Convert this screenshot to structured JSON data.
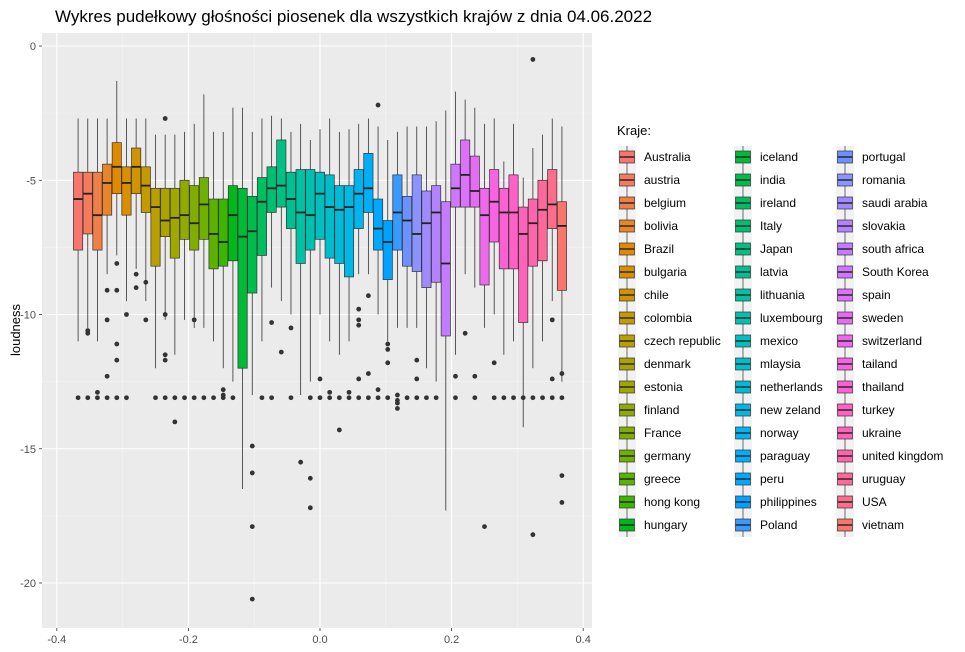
{
  "chart_data": {
    "type": "boxplot",
    "title": "Wykres pudełkowy głośności piosenek dla wszystkich krajów z dnia 04.06.2022",
    "xlabel": "",
    "ylabel": "loudness",
    "xlim": [
      -0.4,
      0.4
    ],
    "ylim": [
      -21.5,
      0.3
    ],
    "x_ticks": [
      "-0.4",
      "-0.2",
      "0.0",
      "0.2",
      "0.4"
    ],
    "x_tick_values": [
      -0.4,
      -0.2,
      0.0,
      0.2,
      0.4
    ],
    "y_ticks": [
      "0",
      "-5",
      "-10",
      "-15",
      "-20"
    ],
    "y_tick_values": [
      0,
      -5,
      -10,
      -15,
      -20
    ],
    "grid": true,
    "legend_title": "Kraje:",
    "legend_position": "right",
    "series": [
      {
        "name": "Australia",
        "color": "#F8766D",
        "whisker_low": -11.0,
        "q1": -7.6,
        "median": -5.7,
        "q3": -4.7,
        "whisker_high": -2.7,
        "outliers": [
          -13.1
        ]
      },
      {
        "name": "austria",
        "color": "#F47B5B",
        "whisker_low": -10.5,
        "q1": -7.0,
        "median": -5.5,
        "q3": -4.7,
        "whisker_high": -2.7,
        "outliers": [
          -10.6,
          -10.7,
          -13.1
        ]
      },
      {
        "name": "belgium",
        "color": "#EF7F46",
        "whisker_low": -11.0,
        "q1": -7.6,
        "median": -6.3,
        "q3": -4.7,
        "whisker_high": -2.7,
        "outliers": [
          -12.9,
          -13.1
        ]
      },
      {
        "name": "bolivia",
        "color": "#E88526",
        "whisker_low": -8.5,
        "q1": -6.3,
        "median": -5.1,
        "q3": -4.4,
        "whisker_high": -2.7,
        "outliers": [
          -9.1,
          -10.2,
          -12.3,
          -13.1
        ]
      },
      {
        "name": "Brazil",
        "color": "#E18A00",
        "whisker_low": -7.8,
        "q1": -5.5,
        "median": -4.5,
        "q3": -3.6,
        "whisker_high": -1.3,
        "outliers": [
          -8.1,
          -9.1,
          -11.1,
          -11.7,
          -13.1
        ]
      },
      {
        "name": "bulgaria",
        "color": "#D89000",
        "whisker_low": -9.5,
        "q1": -6.3,
        "median": -5.1,
        "q3": -4.5,
        "whisker_high": -2.7,
        "outliers": [
          -10.0,
          -13.1
        ]
      },
      {
        "name": "chile",
        "color": "#CF9400",
        "whisker_low": -8.3,
        "q1": -5.5,
        "median": -4.5,
        "q3": -3.8,
        "whisker_high": -2.7,
        "outliers": [
          -8.5,
          -9.0
        ]
      },
      {
        "name": "colombia",
        "color": "#C49A00",
        "whisker_low": -9.5,
        "q1": -6.2,
        "median": -5.2,
        "q3": -4.5,
        "whisker_high": -2.7,
        "outliers": [
          -8.8,
          -10.2
        ]
      },
      {
        "name": "czech republic",
        "color": "#B9A000",
        "whisker_low": -12.0,
        "q1": -8.2,
        "median": -6.0,
        "q3": -5.3,
        "whisker_high": -3.3,
        "outliers": [
          -13.1
        ]
      },
      {
        "name": "denmark",
        "color": "#ABA300",
        "whisker_low": -10.2,
        "q1": -7.1,
        "median": -6.5,
        "q3": -5.3,
        "whisker_high": -3.3,
        "outliers": [
          -2.7,
          -10.0,
          -11.5,
          -11.7,
          -13.1
        ]
      },
      {
        "name": "estonia",
        "color": "#9FA700",
        "whisker_low": -11.5,
        "q1": -7.9,
        "median": -6.4,
        "q3": -5.3,
        "whisker_high": -3.3,
        "outliers": [
          -13.1,
          -14.0
        ]
      },
      {
        "name": "finland",
        "color": "#91AA00",
        "whisker_low": -10.2,
        "q1": -7.2,
        "median": -6.3,
        "q3": -5.0,
        "whisker_high": -3.2,
        "outliers": [
          -13.1
        ]
      },
      {
        "name": "France",
        "color": "#81AD00",
        "whisker_low": -10.5,
        "q1": -7.6,
        "median": -6.6,
        "q3": -5.2,
        "whisker_high": -2.9,
        "outliers": [
          -10.2,
          -13.1
        ]
      },
      {
        "name": "germany",
        "color": "#70B000",
        "whisker_low": -10.5,
        "q1": -7.2,
        "median": -5.9,
        "q3": -4.9,
        "whisker_high": -1.8,
        "outliers": [
          -13.1
        ]
      },
      {
        "name": "greece",
        "color": "#5BB300",
        "whisker_low": -11.0,
        "q1": -8.3,
        "median": -7.0,
        "q3": -5.7,
        "whisker_high": -3.2,
        "outliers": [
          -13.1
        ]
      },
      {
        "name": "hong kong",
        "color": "#3CB600",
        "whisker_low": -12.0,
        "q1": -8.2,
        "median": -7.3,
        "q3": -5.7,
        "whisker_high": -3.2,
        "outliers": [
          -12.8,
          -13.0,
          -13.1
        ]
      },
      {
        "name": "hungary",
        "color": "#00B81C",
        "whisker_low": -12.5,
        "q1": -8.0,
        "median": -6.3,
        "q3": -5.2,
        "whisker_high": -2.3,
        "outliers": [
          -13.1
        ]
      },
      {
        "name": "iceland",
        "color": "#00BA38",
        "whisker_low": -16.5,
        "q1": -12.0,
        "median": -7.1,
        "q3": -5.3,
        "whisker_high": -2.3,
        "outliers": []
      },
      {
        "name": "india",
        "color": "#00BC4D",
        "whisker_low": -13.0,
        "q1": -9.2,
        "median": -6.9,
        "q3": -5.6,
        "whisker_high": -3.2,
        "outliers": [
          -14.9,
          -15.9,
          -17.9,
          -20.6
        ]
      },
      {
        "name": "ireland",
        "color": "#00BD60",
        "whisker_low": -11.0,
        "q1": -7.8,
        "median": -5.8,
        "q3": -4.9,
        "whisker_high": -2.7,
        "outliers": [
          -13.1
        ]
      },
      {
        "name": "Italy",
        "color": "#00BF72",
        "whisker_low": -9.0,
        "q1": -6.2,
        "median": -5.3,
        "q3": -4.5,
        "whisker_high": -2.6,
        "outliers": [
          -10.3,
          -13.1
        ]
      },
      {
        "name": "Japan",
        "color": "#00C083",
        "whisker_low": -9.5,
        "q1": -6.0,
        "median": -5.2,
        "q3": -3.5,
        "whisker_high": -2.7,
        "outliers": [
          -11.4
        ]
      },
      {
        "name": "latvia",
        "color": "#00C093",
        "whisker_low": -10.0,
        "q1": -6.8,
        "median": -5.7,
        "q3": -4.7,
        "whisker_high": -3.2,
        "outliers": [
          -10.5,
          -13.1
        ]
      },
      {
        "name": "lithuania",
        "color": "#00C1A2",
        "whisker_low": -13.0,
        "q1": -8.1,
        "median": -6.2,
        "q3": -4.6,
        "whisker_high": -2.9,
        "outliers": [
          -15.5
        ]
      },
      {
        "name": "luxembourg",
        "color": "#00C0B0",
        "whisker_low": -12.5,
        "q1": -7.6,
        "median": -6.3,
        "q3": -4.6,
        "whisker_high": -3.5,
        "outliers": [
          -13.1,
          -16.1,
          -17.2
        ]
      },
      {
        "name": "mexico",
        "color": "#00BFBE",
        "whisker_low": -10.0,
        "q1": -7.2,
        "median": -5.5,
        "q3": -4.7,
        "whisker_high": -3.1,
        "outliers": [
          -12.4,
          -13.1
        ]
      },
      {
        "name": "mlaysia",
        "color": "#00BDCB",
        "whisker_low": -11.0,
        "q1": -7.9,
        "median": -6.0,
        "q3": -4.8,
        "whisker_high": -2.7,
        "outliers": [
          -12.9,
          -13.1
        ]
      },
      {
        "name": "netherlands",
        "color": "#00BBD7",
        "whisker_low": -11.5,
        "q1": -8.1,
        "median": -6.1,
        "q3": -5.2,
        "whisker_high": -3.2,
        "outliers": [
          -13.1,
          -14.3
        ]
      },
      {
        "name": "new zeland",
        "color": "#00B8E3",
        "whisker_low": -11.0,
        "q1": -8.6,
        "median": -6.0,
        "q3": -5.2,
        "whisker_high": -3.1,
        "outliers": [
          -12.9,
          -13.1
        ]
      },
      {
        "name": "norway",
        "color": "#00B4EF",
        "whisker_low": -8.5,
        "q1": -6.8,
        "median": -5.5,
        "q3": -4.6,
        "whisker_high": -2.9,
        "outliers": [
          -9.8,
          -10.2,
          -10.4,
          -12.4,
          -13.1
        ]
      },
      {
        "name": "paraguay",
        "color": "#00AFF8",
        "whisker_low": -8.5,
        "q1": -6.2,
        "median": -5.3,
        "q3": -4.0,
        "whisker_high": -2.7,
        "outliers": [
          -9.3,
          -12.2,
          -13.1
        ]
      },
      {
        "name": "peru",
        "color": "#00A9FF",
        "whisker_low": -10.0,
        "q1": -7.6,
        "median": -6.8,
        "q3": -5.7,
        "whisker_high": -3.0,
        "outliers": [
          -2.2,
          -12.8,
          -13.1
        ]
      },
      {
        "name": "philippines",
        "color": "#00A2FF",
        "whisker_low": -11.0,
        "q1": -8.7,
        "median": -7.3,
        "q3": -6.5,
        "whisker_high": -3.5,
        "outliers": [
          -11.1,
          -11.3,
          -11.8,
          -13.1
        ]
      },
      {
        "name": "Poland",
        "color": "#389AFF",
        "whisker_low": -10.5,
        "q1": -7.6,
        "median": -6.2,
        "q3": -4.8,
        "whisker_high": -3.2,
        "outliers": [
          -13.0,
          -13.2,
          -13.3,
          -13.5
        ]
      },
      {
        "name": "portugal",
        "color": "#6D91FF",
        "whisker_low": -10.5,
        "q1": -8.2,
        "median": -6.5,
        "q3": -5.6,
        "whisker_high": -3.0,
        "outliers": [
          -13.1
        ]
      },
      {
        "name": "romania",
        "color": "#8B93FF",
        "whisker_low": -10.5,
        "q1": -8.4,
        "median": -7.0,
        "q3": -4.8,
        "whisker_high": -3.0,
        "outliers": [
          -11.7,
          -12.4,
          -13.1
        ]
      },
      {
        "name": "saudi arabia",
        "color": "#A18AFF",
        "whisker_low": -12.0,
        "q1": -9.0,
        "median": -6.6,
        "q3": -5.4,
        "whisker_high": -3.0,
        "outliers": [
          -13.1
        ]
      },
      {
        "name": "slovakia",
        "color": "#B383FF",
        "whisker_low": -12.5,
        "q1": -8.8,
        "median": -6.2,
        "q3": -5.2,
        "whisker_high": -2.8,
        "outliers": [
          -13.1
        ]
      },
      {
        "name": "south africa",
        "color": "#C37CFF",
        "whisker_low": -17.3,
        "q1": -10.8,
        "median": -8.1,
        "q3": -5.8,
        "whisker_high": -2.4,
        "outliers": []
      },
      {
        "name": "South Korea",
        "color": "#D077FF",
        "whisker_low": -11.5,
        "q1": -6.0,
        "median": -5.3,
        "q3": -4.4,
        "whisker_high": -1.7,
        "outliers": [
          -12.3,
          -13.1
        ]
      },
      {
        "name": "spain",
        "color": "#DC71FA",
        "whisker_low": -8.5,
        "q1": -6.0,
        "median": -4.8,
        "q3": -3.5,
        "whisker_high": -2.0,
        "outliers": [
          -10.7
        ]
      },
      {
        "name": "sweden",
        "color": "#E66BF3",
        "whisker_low": -9.0,
        "q1": -6.0,
        "median": -5.4,
        "q3": -4.1,
        "whisker_high": -2.3,
        "outliers": [
          -12.3,
          -13.1
        ]
      },
      {
        "name": "switzerland",
        "color": "#EF67EB",
        "whisker_low": -10.5,
        "q1": -8.9,
        "median": -6.3,
        "q3": -5.3,
        "whisker_high": -2.9,
        "outliers": [
          -17.9
        ]
      },
      {
        "name": "tailand",
        "color": "#F763E0",
        "whisker_low": -10.0,
        "q1": -7.3,
        "median": -5.8,
        "q3": -4.6,
        "whisker_high": -2.7,
        "outliers": [
          -11.8,
          -13.1
        ]
      },
      {
        "name": "thailand",
        "color": "#FC61D4",
        "whisker_low": -11.5,
        "q1": -8.3,
        "median": -6.2,
        "q3": -5.3,
        "whisker_high": -4.3,
        "outliers": [
          -13.1
        ]
      },
      {
        "name": "turkey",
        "color": "#FF61C7",
        "whisker_low": -11.0,
        "q1": -8.3,
        "median": -6.2,
        "q3": -4.8,
        "whisker_high": -2.9,
        "outliers": [
          -13.1
        ]
      },
      {
        "name": "ukraine",
        "color": "#FF62B9",
        "whisker_low": -14.2,
        "q1": -10.3,
        "median": -7.0,
        "q3": -6.0,
        "whisker_high": -4.9,
        "outliers": [
          -13.1
        ]
      },
      {
        "name": "united kingdom",
        "color": "#FF65AA",
        "whisker_low": -12.0,
        "q1": -8.2,
        "median": -6.6,
        "q3": -5.7,
        "whisker_high": -3.8,
        "outliers": [
          -0.5,
          -13.1,
          -18.2
        ]
      },
      {
        "name": "uruguay",
        "color": "#FF689B",
        "whisker_low": -11.0,
        "q1": -8.0,
        "median": -6.1,
        "q3": -5.0,
        "whisker_high": -3.3,
        "outliers": [
          -13.1
        ]
      },
      {
        "name": "USA",
        "color": "#FC6D8B",
        "whisker_low": -9.5,
        "q1": -6.8,
        "median": -5.9,
        "q3": -4.6,
        "whisker_high": -2.7,
        "outliers": [
          -10.2,
          -12.4,
          -13.1
        ]
      },
      {
        "name": "vietnam",
        "color": "#F8766D",
        "whisker_low": -12.5,
        "q1": -9.1,
        "median": -6.7,
        "q3": -5.8,
        "whisker_high": -3.0,
        "outliers": [
          -12.2,
          -13.1,
          -16.0,
          -17.0
        ]
      }
    ]
  }
}
